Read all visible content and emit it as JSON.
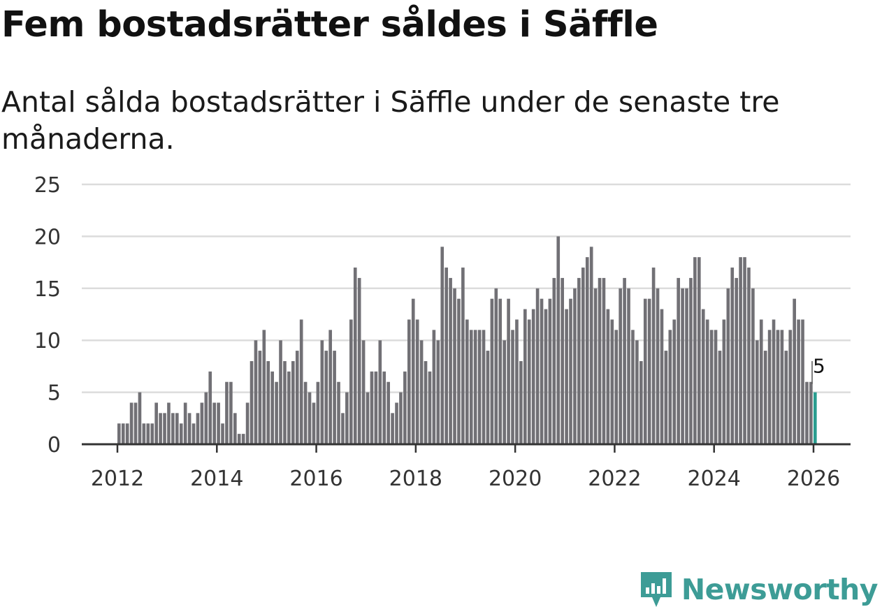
{
  "header": {
    "title": "Fem bostadsrätter såldes i Säffle",
    "subtitle": "Antal sålda bostadsrätter i Säffle under de senaste tre månaderna."
  },
  "brand": {
    "name": "Newsworthy",
    "color": "#3d9c96"
  },
  "chart_data": {
    "type": "bar",
    "title": "Fem bostadsrätter såldes i Säffle",
    "subtitle": "Antal sålda bostadsrätter i Säffle under de senaste tre månaderna.",
    "xlabel": "",
    "ylabel": "",
    "ylim": [
      0,
      25
    ],
    "yticks": [
      0,
      5,
      10,
      15,
      20,
      25
    ],
    "xticks": [
      "2012",
      "2014",
      "2016",
      "2018",
      "2020",
      "2022",
      "2024",
      "2026"
    ],
    "start": "2012-01",
    "frequency": "monthly",
    "grid": true,
    "bar_color": "#717075",
    "highlight_color": "#2a9d8f",
    "highlight_label": "5",
    "values": [
      2,
      2,
      2,
      4,
      4,
      5,
      2,
      2,
      2,
      4,
      3,
      3,
      4,
      3,
      3,
      2,
      4,
      3,
      2,
      3,
      4,
      5,
      7,
      4,
      4,
      2,
      6,
      6,
      3,
      1,
      1,
      4,
      8,
      10,
      9,
      11,
      8,
      7,
      6,
      10,
      8,
      7,
      8,
      9,
      12,
      6,
      5,
      4,
      6,
      10,
      9,
      11,
      9,
      6,
      3,
      5,
      12,
      17,
      16,
      10,
      5,
      7,
      7,
      10,
      7,
      6,
      3,
      4,
      5,
      7,
      12,
      14,
      12,
      10,
      8,
      7,
      11,
      10,
      19,
      17,
      16,
      15,
      14,
      17,
      12,
      11,
      11,
      11,
      11,
      9,
      14,
      15,
      14,
      10,
      14,
      11,
      12,
      8,
      13,
      12,
      13,
      15,
      14,
      13,
      14,
      16,
      20,
      16,
      13,
      14,
      15,
      16,
      17,
      18,
      19,
      15,
      16,
      16,
      13,
      12,
      11,
      15,
      16,
      15,
      11,
      10,
      8,
      14,
      14,
      17,
      15,
      13,
      9,
      11,
      12,
      16,
      15,
      15,
      16,
      18,
      18,
      13,
      12,
      11,
      11,
      9,
      12,
      15,
      17,
      16,
      18,
      18,
      17,
      15,
      10,
      12,
      9,
      11,
      12,
      11,
      11,
      9,
      11,
      14,
      12,
      12,
      6,
      6,
      5
    ]
  }
}
